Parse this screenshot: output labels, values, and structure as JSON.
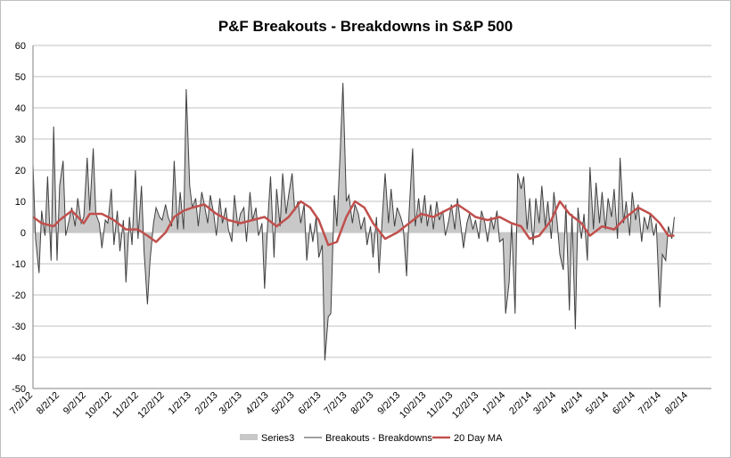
{
  "chart_data": {
    "type": "area",
    "title": "P&F Breakouts - Breakdowns in S&P 500",
    "xlabel": "",
    "ylabel": "",
    "ylim": [
      -50,
      60
    ],
    "yticks": [
      "-50",
      "-40",
      "-30",
      "-20",
      "-10",
      "0",
      "10",
      "20",
      "30",
      "40",
      "50",
      "60"
    ],
    "xticks": [
      "7/2/12",
      "8/2/12",
      "9/2/12",
      "10/2/12",
      "11/2/12",
      "12/2/12",
      "1/2/13",
      "2/2/13",
      "3/2/13",
      "4/2/13",
      "5/2/13",
      "6/2/13",
      "7/2/13",
      "8/2/13",
      "9/2/13",
      "10/2/13",
      "11/2/13",
      "12/2/13",
      "1/2/14",
      "2/2/14",
      "3/2/14",
      "4/2/14",
      "5/2/14",
      "6/2/14",
      "7/2/14",
      "8/2/14"
    ],
    "x_range": [
      "2012-07-02",
      "2014-08-29"
    ],
    "grid": "horizontal",
    "legend_position": "bottom",
    "series": [
      {
        "name": "Series3",
        "type": "area",
        "color": "#c8c8c8",
        "source": "Breakouts - Breakdowns"
      },
      {
        "name": "Breakouts - Breakdowns",
        "type": "line",
        "color": "#404040",
        "points": [
          [
            "2012-07-02",
            22
          ],
          [
            "2012-07-05",
            -2
          ],
          [
            "2012-07-09",
            -13
          ],
          [
            "2012-07-12",
            7
          ],
          [
            "2012-07-16",
            -1
          ],
          [
            "2012-07-19",
            18
          ],
          [
            "2012-07-23",
            -9
          ],
          [
            "2012-07-26",
            34
          ],
          [
            "2012-07-30",
            -9
          ],
          [
            "2012-08-02",
            15
          ],
          [
            "2012-08-06",
            23
          ],
          [
            "2012-08-09",
            -1
          ],
          [
            "2012-08-13",
            4
          ],
          [
            "2012-08-16",
            8
          ],
          [
            "2012-08-20",
            2
          ],
          [
            "2012-08-23",
            11
          ],
          [
            "2012-08-27",
            3
          ],
          [
            "2012-08-30",
            5
          ],
          [
            "2012-09-03",
            24
          ],
          [
            "2012-09-06",
            7
          ],
          [
            "2012-09-10",
            27
          ],
          [
            "2012-09-13",
            6
          ],
          [
            "2012-09-17",
            3
          ],
          [
            "2012-09-20",
            -5
          ],
          [
            "2012-09-24",
            4
          ],
          [
            "2012-09-27",
            3
          ],
          [
            "2012-10-01",
            14
          ],
          [
            "2012-10-04",
            -4
          ],
          [
            "2012-10-08",
            7
          ],
          [
            "2012-10-11",
            -6
          ],
          [
            "2012-10-15",
            4
          ],
          [
            "2012-10-18",
            -16
          ],
          [
            "2012-10-22",
            5
          ],
          [
            "2012-10-25",
            -4
          ],
          [
            "2012-10-29",
            20
          ],
          [
            "2012-11-01",
            -2
          ],
          [
            "2012-11-05",
            15
          ],
          [
            "2012-11-08",
            -6
          ],
          [
            "2012-11-12",
            -23
          ],
          [
            "2012-11-15",
            -9
          ],
          [
            "2012-11-19",
            3
          ],
          [
            "2012-11-22",
            8
          ],
          [
            "2012-11-26",
            5
          ],
          [
            "2012-11-29",
            4
          ],
          [
            "2012-12-03",
            9
          ],
          [
            "2012-12-06",
            5
          ],
          [
            "2012-12-10",
            2
          ],
          [
            "2012-12-13",
            23
          ],
          [
            "2012-12-17",
            1
          ],
          [
            "2012-12-20",
            13
          ],
          [
            "2012-12-24",
            1
          ],
          [
            "2012-12-27",
            46
          ],
          [
            "2012-12-31",
            15
          ],
          [
            "2013-01-03",
            8
          ],
          [
            "2013-01-07",
            11
          ],
          [
            "2013-01-10",
            2
          ],
          [
            "2013-01-14",
            13
          ],
          [
            "2013-01-17",
            9
          ],
          [
            "2013-01-21",
            3
          ],
          [
            "2013-01-24",
            12
          ],
          [
            "2013-01-28",
            6
          ],
          [
            "2013-01-31",
            -1
          ],
          [
            "2013-02-04",
            11
          ],
          [
            "2013-02-07",
            3
          ],
          [
            "2013-02-11",
            8
          ],
          [
            "2013-02-14",
            1
          ],
          [
            "2013-02-18",
            -3
          ],
          [
            "2013-02-21",
            12
          ],
          [
            "2013-02-25",
            2
          ],
          [
            "2013-02-28",
            6
          ],
          [
            "2013-03-04",
            8
          ],
          [
            "2013-03-07",
            -3
          ],
          [
            "2013-03-11",
            13
          ],
          [
            "2013-03-14",
            4
          ],
          [
            "2013-03-18",
            8
          ],
          [
            "2013-03-21",
            -1
          ],
          [
            "2013-03-25",
            3
          ],
          [
            "2013-03-28",
            -18
          ],
          [
            "2013-04-01",
            5
          ],
          [
            "2013-04-04",
            18
          ],
          [
            "2013-04-08",
            -8
          ],
          [
            "2013-04-11",
            14
          ],
          [
            "2013-04-15",
            2
          ],
          [
            "2013-04-18",
            19
          ],
          [
            "2013-04-22",
            6
          ],
          [
            "2013-04-25",
            12
          ],
          [
            "2013-04-29",
            19
          ],
          [
            "2013-05-02",
            7
          ],
          [
            "2013-05-06",
            10
          ],
          [
            "2013-05-09",
            3
          ],
          [
            "2013-05-13",
            9
          ],
          [
            "2013-05-16",
            -9
          ],
          [
            "2013-05-20",
            3
          ],
          [
            "2013-05-23",
            -3
          ],
          [
            "2013-05-27",
            5
          ],
          [
            "2013-05-30",
            -8
          ],
          [
            "2013-06-03",
            -4
          ],
          [
            "2013-06-06",
            -41
          ],
          [
            "2013-06-10",
            -27
          ],
          [
            "2013-06-13",
            -26
          ],
          [
            "2013-06-17",
            12
          ],
          [
            "2013-06-20",
            2
          ],
          [
            "2013-06-24",
            27
          ],
          [
            "2013-06-27",
            48
          ],
          [
            "2013-07-01",
            10
          ],
          [
            "2013-07-04",
            12
          ],
          [
            "2013-07-08",
            3
          ],
          [
            "2013-07-11",
            9
          ],
          [
            "2013-07-15",
            6
          ],
          [
            "2013-07-18",
            1
          ],
          [
            "2013-07-22",
            5
          ],
          [
            "2013-07-25",
            -4
          ],
          [
            "2013-07-29",
            2
          ],
          [
            "2013-08-01",
            -8
          ],
          [
            "2013-08-05",
            5
          ],
          [
            "2013-08-08",
            -13
          ],
          [
            "2013-08-12",
            6
          ],
          [
            "2013-08-15",
            19
          ],
          [
            "2013-08-19",
            3
          ],
          [
            "2013-08-22",
            14
          ],
          [
            "2013-08-26",
            2
          ],
          [
            "2013-08-29",
            8
          ],
          [
            "2013-09-02",
            5
          ],
          [
            "2013-09-05",
            2
          ],
          [
            "2013-09-09",
            -14
          ],
          [
            "2013-09-12",
            7
          ],
          [
            "2013-09-16",
            27
          ],
          [
            "2013-09-19",
            2
          ],
          [
            "2013-09-23",
            11
          ],
          [
            "2013-09-26",
            3
          ],
          [
            "2013-09-30",
            12
          ],
          [
            "2013-10-03",
            2
          ],
          [
            "2013-10-07",
            9
          ],
          [
            "2013-10-10",
            1
          ],
          [
            "2013-10-14",
            10
          ],
          [
            "2013-10-17",
            4
          ],
          [
            "2013-10-21",
            7
          ],
          [
            "2013-10-24",
            -1
          ],
          [
            "2013-10-28",
            4
          ],
          [
            "2013-10-31",
            9
          ],
          [
            "2013-11-04",
            1
          ],
          [
            "2013-11-07",
            11
          ],
          [
            "2013-11-11",
            2
          ],
          [
            "2013-11-14",
            -5
          ],
          [
            "2013-11-18",
            3
          ],
          [
            "2013-11-21",
            6
          ],
          [
            "2013-11-25",
            1
          ],
          [
            "2013-11-28",
            4
          ],
          [
            "2013-12-02",
            -2
          ],
          [
            "2013-12-05",
            7
          ],
          [
            "2013-12-09",
            3
          ],
          [
            "2013-12-12",
            -3
          ],
          [
            "2013-12-16",
            5
          ],
          [
            "2013-12-19",
            1
          ],
          [
            "2013-12-23",
            7
          ],
          [
            "2013-12-26",
            -3
          ],
          [
            "2013-12-30",
            -2
          ],
          [
            "2014-01-02",
            -26
          ],
          [
            "2014-01-06",
            -16
          ],
          [
            "2014-01-09",
            3
          ],
          [
            "2014-01-13",
            -26
          ],
          [
            "2014-01-16",
            19
          ],
          [
            "2014-01-20",
            14
          ],
          [
            "2014-01-23",
            18
          ],
          [
            "2014-01-27",
            1
          ],
          [
            "2014-01-30",
            11
          ],
          [
            "2014-02-03",
            -4
          ],
          [
            "2014-02-06",
            11
          ],
          [
            "2014-02-10",
            3
          ],
          [
            "2014-02-13",
            15
          ],
          [
            "2014-02-17",
            2
          ],
          [
            "2014-02-20",
            10
          ],
          [
            "2014-02-24",
            -2
          ],
          [
            "2014-02-27",
            13
          ],
          [
            "2014-03-03",
            3
          ],
          [
            "2014-03-06",
            -7
          ],
          [
            "2014-03-10",
            -12
          ],
          [
            "2014-03-13",
            9
          ],
          [
            "2014-03-17",
            -25
          ],
          [
            "2014-03-20",
            6
          ],
          [
            "2014-03-24",
            -31
          ],
          [
            "2014-03-27",
            8
          ],
          [
            "2014-03-31",
            -2
          ],
          [
            "2014-04-03",
            6
          ],
          [
            "2014-04-07",
            -9
          ],
          [
            "2014-04-10",
            21
          ],
          [
            "2014-04-14",
            1
          ],
          [
            "2014-04-17",
            16
          ],
          [
            "2014-04-21",
            3
          ],
          [
            "2014-04-24",
            13
          ],
          [
            "2014-04-28",
            1
          ],
          [
            "2014-05-01",
            11
          ],
          [
            "2014-05-05",
            5
          ],
          [
            "2014-05-08",
            14
          ],
          [
            "2014-05-12",
            -2
          ],
          [
            "2014-05-15",
            24
          ],
          [
            "2014-05-19",
            3
          ],
          [
            "2014-05-22",
            10
          ],
          [
            "2014-05-26",
            -1
          ],
          [
            "2014-05-29",
            13
          ],
          [
            "2014-06-02",
            4
          ],
          [
            "2014-06-05",
            9
          ],
          [
            "2014-06-09",
            -3
          ],
          [
            "2014-06-12",
            5
          ],
          [
            "2014-06-16",
            1
          ],
          [
            "2014-06-19",
            6
          ],
          [
            "2014-06-23",
            -1
          ],
          [
            "2014-06-26",
            3
          ],
          [
            "2014-06-30",
            -24
          ],
          [
            "2014-07-03",
            -7
          ],
          [
            "2014-07-07",
            -9
          ],
          [
            "2014-07-10",
            2
          ],
          [
            "2014-07-14",
            -2
          ],
          [
            "2014-07-17",
            5
          ]
        ]
      },
      {
        "name": "20 Day MA",
        "type": "line",
        "color": "#c0504d",
        "points": [
          [
            "2012-07-02",
            5
          ],
          [
            "2012-07-12",
            3
          ],
          [
            "2012-07-26",
            2
          ],
          [
            "2012-08-02",
            4
          ],
          [
            "2012-08-16",
            7
          ],
          [
            "2012-08-30",
            3
          ],
          [
            "2012-09-06",
            6
          ],
          [
            "2012-09-20",
            6
          ],
          [
            "2012-10-04",
            4
          ],
          [
            "2012-10-18",
            1
          ],
          [
            "2012-11-01",
            1
          ],
          [
            "2012-11-12",
            -1
          ],
          [
            "2012-11-22",
            -3
          ],
          [
            "2012-12-03",
            0
          ],
          [
            "2012-12-13",
            5
          ],
          [
            "2012-12-24",
            7
          ],
          [
            "2013-01-03",
            8
          ],
          [
            "2013-01-17",
            9
          ],
          [
            "2013-01-31",
            6
          ],
          [
            "2013-02-14",
            4
          ],
          [
            "2013-02-28",
            3
          ],
          [
            "2013-03-14",
            4
          ],
          [
            "2013-03-28",
            5
          ],
          [
            "2013-04-11",
            2
          ],
          [
            "2013-04-25",
            5
          ],
          [
            "2013-05-09",
            10
          ],
          [
            "2013-05-20",
            8
          ],
          [
            "2013-05-30",
            4
          ],
          [
            "2013-06-10",
            -4
          ],
          [
            "2013-06-20",
            -3
          ],
          [
            "2013-07-01",
            5
          ],
          [
            "2013-07-11",
            10
          ],
          [
            "2013-07-22",
            8
          ],
          [
            "2013-08-01",
            3
          ],
          [
            "2013-08-15",
            -2
          ],
          [
            "2013-08-29",
            0
          ],
          [
            "2013-09-12",
            3
          ],
          [
            "2013-09-26",
            6
          ],
          [
            "2013-10-10",
            5
          ],
          [
            "2013-10-24",
            7
          ],
          [
            "2013-11-07",
            9
          ],
          [
            "2013-11-18",
            7
          ],
          [
            "2013-11-28",
            5
          ],
          [
            "2013-12-12",
            4
          ],
          [
            "2013-12-26",
            5
          ],
          [
            "2014-01-09",
            3
          ],
          [
            "2014-01-20",
            2
          ],
          [
            "2014-01-30",
            -2
          ],
          [
            "2014-02-10",
            -1
          ],
          [
            "2014-02-24",
            4
          ],
          [
            "2014-03-06",
            10
          ],
          [
            "2014-03-17",
            6
          ],
          [
            "2014-03-31",
            3
          ],
          [
            "2014-04-10",
            -1
          ],
          [
            "2014-04-24",
            2
          ],
          [
            "2014-05-08",
            1
          ],
          [
            "2014-05-22",
            5
          ],
          [
            "2014-06-05",
            8
          ],
          [
            "2014-06-19",
            6
          ],
          [
            "2014-06-30",
            3
          ],
          [
            "2014-07-10",
            -1
          ],
          [
            "2014-07-17",
            -1
          ]
        ]
      }
    ]
  }
}
